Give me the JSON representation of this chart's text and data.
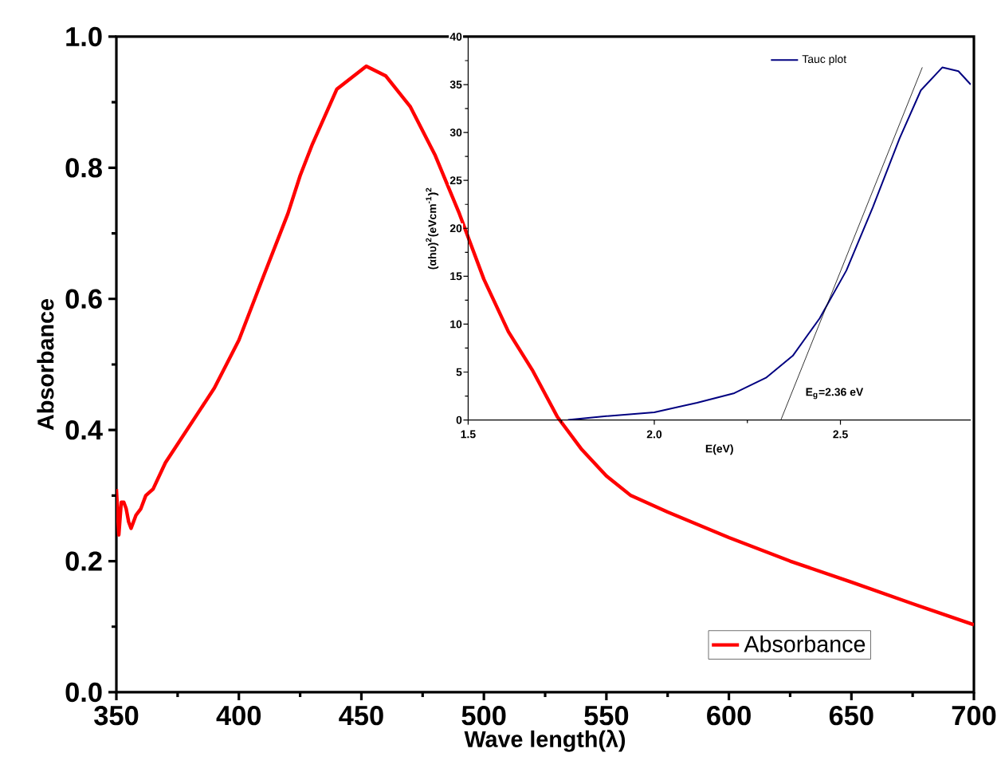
{
  "chart_data": [
    {
      "type": "line",
      "xlabel": "Wave length(λ)",
      "ylabel": "Absorbance",
      "xlim": [
        350,
        700
      ],
      "ylim": [
        0,
        1
      ],
      "xticks": [
        350,
        400,
        450,
        500,
        550,
        600,
        650,
        700
      ],
      "yticks": [
        {
          "value": 0,
          "label": "0.0"
        },
        0.2,
        0.4,
        0.6,
        0.8,
        {
          "value": 1,
          "label": "1.0"
        }
      ],
      "legend": "bottom right",
      "grid": false,
      "series": [
        {
          "name": "Absorbance",
          "color": "#ff0000",
          "x": [
            350,
            351,
            352,
            353,
            354,
            355,
            356,
            358,
            360,
            362,
            365,
            370,
            380,
            390,
            400,
            410,
            420,
            425,
            430,
            440,
            452,
            460,
            470,
            480,
            490,
            500,
            510,
            520,
            530,
            540,
            550,
            560,
            575,
            600,
            625,
            650,
            675,
            700
          ],
          "values": [
            0.31,
            0.24,
            0.29,
            0.29,
            0.28,
            0.26,
            0.25,
            0.27,
            0.28,
            0.3,
            0.31,
            0.35,
            0.407,
            0.464,
            0.537,
            0.634,
            0.73,
            0.788,
            0.836,
            0.92,
            0.955,
            0.94,
            0.893,
            0.82,
            0.73,
            0.63,
            0.55,
            0.49,
            0.42,
            0.37,
            0.33,
            0.3,
            0.275,
            0.236,
            0.2,
            0.168,
            0.135,
            0.103
          ]
        }
      ]
    },
    {
      "type": "line",
      "xlabel": "E(eV)",
      "ylabel": "(αhυ)$^{2}$(eVcm$^{-1}$)$^{2}$",
      "xlim": [
        1.5,
        2.85
      ],
      "ylim": [
        0,
        40
      ],
      "xticks": [
        1.5,
        {
          "value": 2,
          "label": "2.0"
        },
        2.5
      ],
      "yticks": [
        0,
        5,
        10,
        15,
        20,
        25,
        30,
        35,
        40
      ],
      "legend": "top",
      "grid": false,
      "annotations": [
        "E$_{g}$=2.36 eV"
      ],
      "series": [
        {
          "name": "Tauc plot",
          "color": "#000080",
          "x": [
            1.768,
            1.871,
            2.0,
            2.115,
            2.215,
            2.3,
            2.372,
            2.444,
            2.516,
            2.587,
            2.659,
            2.716,
            2.774,
            2.817,
            2.85
          ],
          "values": [
            0,
            0.4,
            0.8,
            1.8,
            2.8,
            4.4,
            6.7,
            10.6,
            15.6,
            22.2,
            29.4,
            34.4,
            36.8,
            36.4,
            35
          ]
        },
        {
          "color": "#000000",
          "x": [
            2.34,
            2.72
          ],
          "values": [
            0,
            36.8
          ]
        }
      ]
    }
  ]
}
